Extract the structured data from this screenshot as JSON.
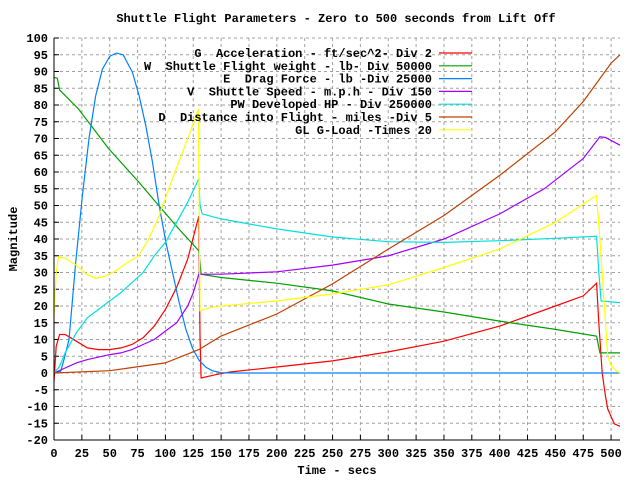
{
  "chart_data": {
    "type": "line",
    "title": "Shuttle Flight Parameters - Zero to 500 seconds from Lift Off",
    "xlabel": "Time - secs",
    "ylabel": "Magnitude",
    "xlim": [
      0,
      508
    ],
    "ylim": [
      -20,
      100
    ],
    "xticks": [
      "0",
      "25",
      "50",
      "75",
      "100",
      "125",
      "150",
      "175",
      "200",
      "225",
      "250",
      "275",
      "300",
      "325",
      "350",
      "375",
      "400",
      "425",
      "450",
      "475",
      "500"
    ],
    "yticks": [
      "-20",
      "-15",
      "-10",
      "-5",
      "0",
      "5",
      "10",
      "15",
      "20",
      "25",
      "30",
      "35",
      "40",
      "45",
      "50",
      "55",
      "60",
      "65",
      "70",
      "75",
      "80",
      "85",
      "90",
      "95",
      "100"
    ],
    "grid": true,
    "legend_position": "top-right",
    "series": [
      {
        "name": "G  Acceleration - ft/sec^2- Div 2",
        "color": "#ff0000",
        "points": [
          [
            0,
            -2.5
          ],
          [
            2,
            8
          ],
          [
            5,
            11.5
          ],
          [
            10,
            11.5
          ],
          [
            15,
            10.5
          ],
          [
            20,
            9.5
          ],
          [
            30,
            7.5
          ],
          [
            40,
            7
          ],
          [
            50,
            7
          ],
          [
            60,
            7.5
          ],
          [
            70,
            8.5
          ],
          [
            80,
            10.5
          ],
          [
            90,
            14
          ],
          [
            100,
            19
          ],
          [
            110,
            25.5
          ],
          [
            120,
            34
          ],
          [
            130,
            46.8
          ],
          [
            131,
            11
          ],
          [
            132,
            -1.5
          ],
          [
            145,
            -0.5
          ],
          [
            158,
            0.3
          ],
          [
            200,
            1.8
          ],
          [
            250,
            3.6
          ],
          [
            300,
            6.3
          ],
          [
            350,
            9.5
          ],
          [
            400,
            14
          ],
          [
            450,
            20
          ],
          [
            475,
            23
          ],
          [
            487,
            26.8
          ],
          [
            489,
            15
          ],
          [
            492,
            0
          ],
          [
            495,
            -7
          ],
          [
            497,
            -10.7
          ],
          [
            500,
            -13
          ],
          [
            503,
            -15.2
          ],
          [
            508,
            -15.9
          ]
        ]
      },
      {
        "name": "W  Shuttle Flight weight - lb- Div 50000",
        "color": "#00a000",
        "points": [
          [
            0,
            88.2
          ],
          [
            3,
            88
          ],
          [
            5,
            84.5
          ],
          [
            22,
            78.8
          ],
          [
            49,
            67
          ],
          [
            76,
            57
          ],
          [
            94,
            50
          ],
          [
            112,
            43
          ],
          [
            130,
            36.5
          ],
          [
            131,
            33
          ],
          [
            132,
            29.5
          ],
          [
            150,
            28.5
          ],
          [
            200,
            26.8
          ],
          [
            250,
            24.5
          ],
          [
            300,
            20.6
          ],
          [
            350,
            18.2
          ],
          [
            400,
            15.5
          ],
          [
            450,
            13
          ],
          [
            487,
            11
          ],
          [
            490,
            6
          ],
          [
            508,
            6
          ]
        ]
      },
      {
        "name": "E  Drag Force - lb -Div 25000",
        "color": "#0080ff",
        "points": [
          [
            0,
            0
          ],
          [
            6,
            0.5
          ],
          [
            9,
            4
          ],
          [
            13.5,
            10
          ],
          [
            19.5,
            33
          ],
          [
            25.5,
            53
          ],
          [
            31.4,
            70
          ],
          [
            37.4,
            82.8
          ],
          [
            43.4,
            90.7
          ],
          [
            50,
            94.5
          ],
          [
            55.7,
            95.5
          ],
          [
            62,
            95
          ],
          [
            70.4,
            89.8
          ],
          [
            76.4,
            82.8
          ],
          [
            82.4,
            73.8
          ],
          [
            88.4,
            62.9
          ],
          [
            94.4,
            50
          ],
          [
            100.4,
            39
          ],
          [
            106.4,
            30
          ],
          [
            112.4,
            21
          ],
          [
            118.4,
            13
          ],
          [
            124.4,
            7.3
          ],
          [
            130.4,
            3.7
          ],
          [
            136.4,
            1.7
          ],
          [
            142,
            0.7
          ],
          [
            150,
            0.1
          ],
          [
            160,
            0
          ],
          [
            508,
            0
          ]
        ]
      },
      {
        "name": "V  Shuttle Speed - m.p.h - Div 150",
        "color": "#a000ff",
        "points": [
          [
            0,
            0
          ],
          [
            10,
            1.5
          ],
          [
            20,
            3
          ],
          [
            30,
            4
          ],
          [
            50,
            5.5
          ],
          [
            60,
            6
          ],
          [
            70,
            7
          ],
          [
            80,
            8.5
          ],
          [
            90,
            10
          ],
          [
            100,
            12.5
          ],
          [
            110,
            15
          ],
          [
            120,
            20
          ],
          [
            125,
            24
          ],
          [
            130,
            29.5
          ],
          [
            150,
            29.5
          ],
          [
            200,
            30.2
          ],
          [
            250,
            32.2
          ],
          [
            300,
            35
          ],
          [
            350,
            40
          ],
          [
            400,
            47.5
          ],
          [
            440,
            55
          ],
          [
            475,
            64
          ],
          [
            490,
            70.5
          ],
          [
            495,
            70.3
          ],
          [
            508,
            68
          ]
        ]
      },
      {
        "name": "PW Developed HP - Div 250000",
        "color": "#00e0e0",
        "points": [
          [
            0,
            0
          ],
          [
            5,
            2
          ],
          [
            10,
            6
          ],
          [
            20,
            12
          ],
          [
            30,
            16.5
          ],
          [
            40,
            19
          ],
          [
            50,
            21.5
          ],
          [
            60,
            24
          ],
          [
            70,
            27
          ],
          [
            80,
            30
          ],
          [
            90,
            35
          ],
          [
            100,
            39
          ],
          [
            110,
            45
          ],
          [
            120,
            51
          ],
          [
            130,
            58
          ],
          [
            131,
            50
          ],
          [
            133,
            47.5
          ],
          [
            150,
            46
          ],
          [
            200,
            43
          ],
          [
            250,
            40.6
          ],
          [
            300,
            39.2
          ],
          [
            350,
            39
          ],
          [
            400,
            39.5
          ],
          [
            450,
            40.2
          ],
          [
            487,
            40.8
          ],
          [
            489,
            30
          ],
          [
            491,
            21.5
          ],
          [
            508,
            21
          ]
        ]
      },
      {
        "name": "D  Distance into Flight - miles -Div 5",
        "color": "#c04000",
        "points": [
          [
            0,
            0
          ],
          [
            50,
            0.7
          ],
          [
            100,
            3
          ],
          [
            130,
            7
          ],
          [
            150,
            11
          ],
          [
            200,
            17.6
          ],
          [
            250,
            26.6
          ],
          [
            300,
            37
          ],
          [
            350,
            47
          ],
          [
            400,
            59
          ],
          [
            450,
            72
          ],
          [
            475,
            81
          ],
          [
            500,
            92.5
          ],
          [
            508,
            95
          ]
        ]
      },
      {
        "name": "GL G-Load -Times 20",
        "color": "#ffff00",
        "points": [
          [
            0,
            17
          ],
          [
            2,
            30
          ],
          [
            4,
            34.6
          ],
          [
            10,
            34.3
          ],
          [
            19.5,
            32.3
          ],
          [
            30,
            29.3
          ],
          [
            37.4,
            28.3
          ],
          [
            46.4,
            29
          ],
          [
            55.4,
            30.5
          ],
          [
            64,
            32.5
          ],
          [
            76,
            35
          ],
          [
            85,
            40
          ],
          [
            94,
            46.6
          ],
          [
            103,
            55
          ],
          [
            112,
            63
          ],
          [
            121,
            70.8
          ],
          [
            129.6,
            78.8
          ],
          [
            130.5,
            40
          ],
          [
            131,
            18.6
          ],
          [
            140,
            19.5
          ],
          [
            150,
            20
          ],
          [
            200,
            21.5
          ],
          [
            250,
            23.6
          ],
          [
            300,
            26.3
          ],
          [
            350,
            31.5
          ],
          [
            400,
            37
          ],
          [
            450,
            45
          ],
          [
            487,
            53
          ],
          [
            490,
            40
          ],
          [
            494,
            20
          ],
          [
            497,
            5
          ],
          [
            500,
            2.2
          ],
          [
            505,
            0.5
          ],
          [
            508,
            0
          ]
        ]
      }
    ]
  }
}
